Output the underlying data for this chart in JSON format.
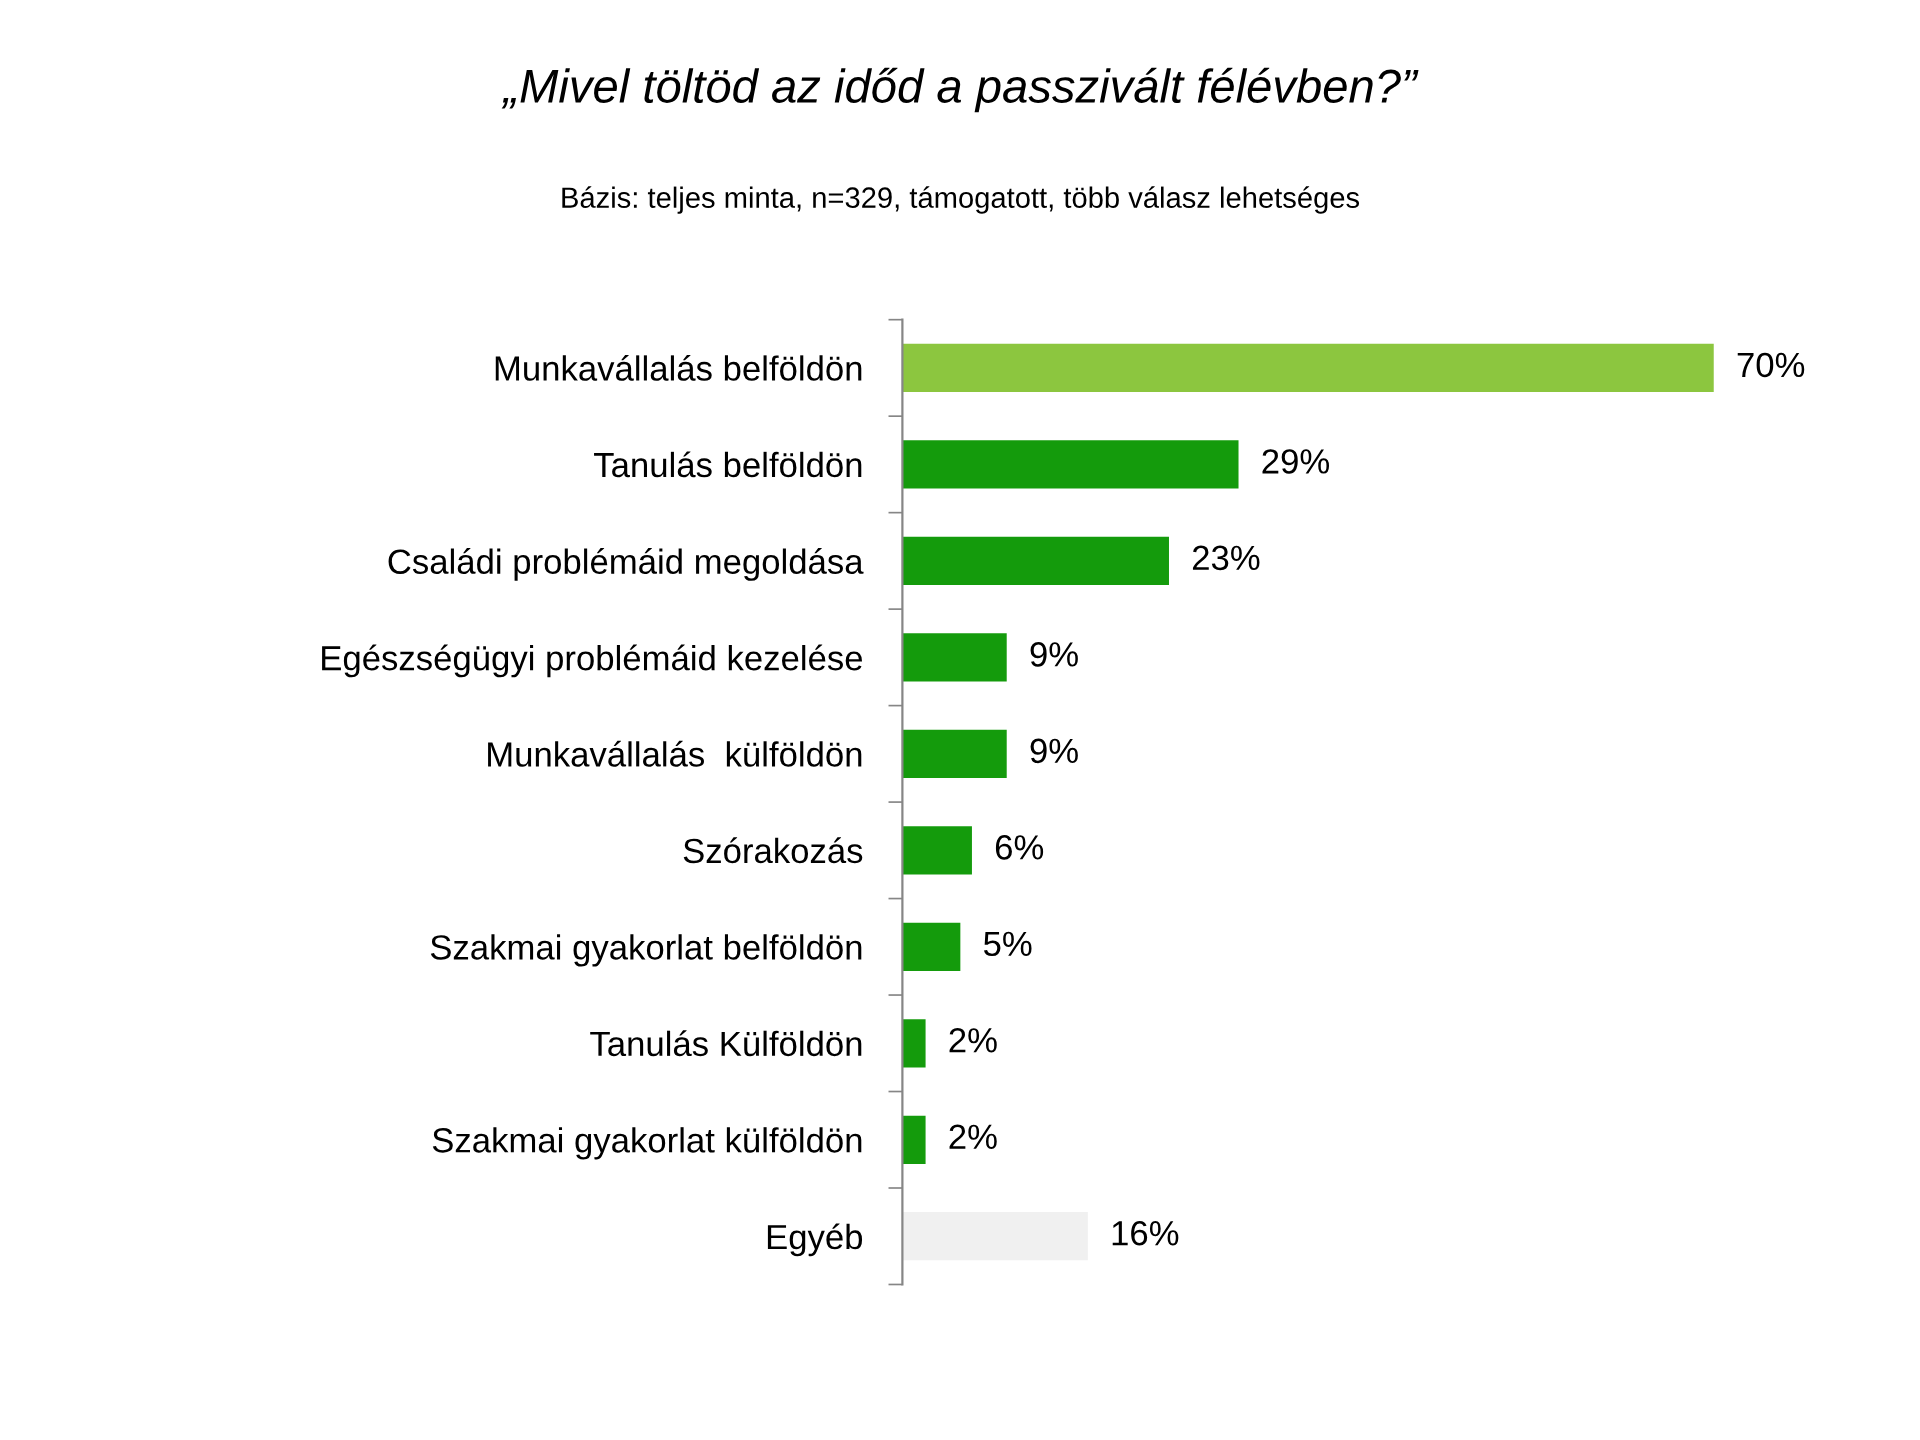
{
  "chart_data": {
    "type": "bar",
    "orientation": "horizontal",
    "title": "„Mivel töltöd az időd a passzivált félévben?”",
    "subtitle": "Bázis: teljes minta, n=329, támogatott, több válasz lehetséges",
    "categories": [
      "Munkavállalás belföldön",
      "Tanulás belföldön",
      "Családi problémáid megoldása",
      "Egészségügyi problémáid kezelése",
      "Munkavállalás  külföldön",
      "Szórakozás",
      "Szakmai gyakorlat belföldön",
      "Tanulás Külföldön",
      "Szakmai gyakorlat külföldön",
      "Egyéb"
    ],
    "values": [
      70,
      29,
      23,
      9,
      9,
      6,
      5,
      2,
      2,
      16
    ],
    "colors": [
      "#8cc63f",
      "#149b0c",
      "#149b0c",
      "#149b0c",
      "#149b0c",
      "#149b0c",
      "#149b0c",
      "#149b0c",
      "#149b0c",
      "#f0f0f0"
    ],
    "value_labels": [
      "70%",
      "29%",
      "23%",
      "9%",
      "9%",
      "6%",
      "5%",
      "2%",
      "2%",
      "16%"
    ],
    "tick_labels": "y",
    "grid": false,
    "legend": false
  }
}
